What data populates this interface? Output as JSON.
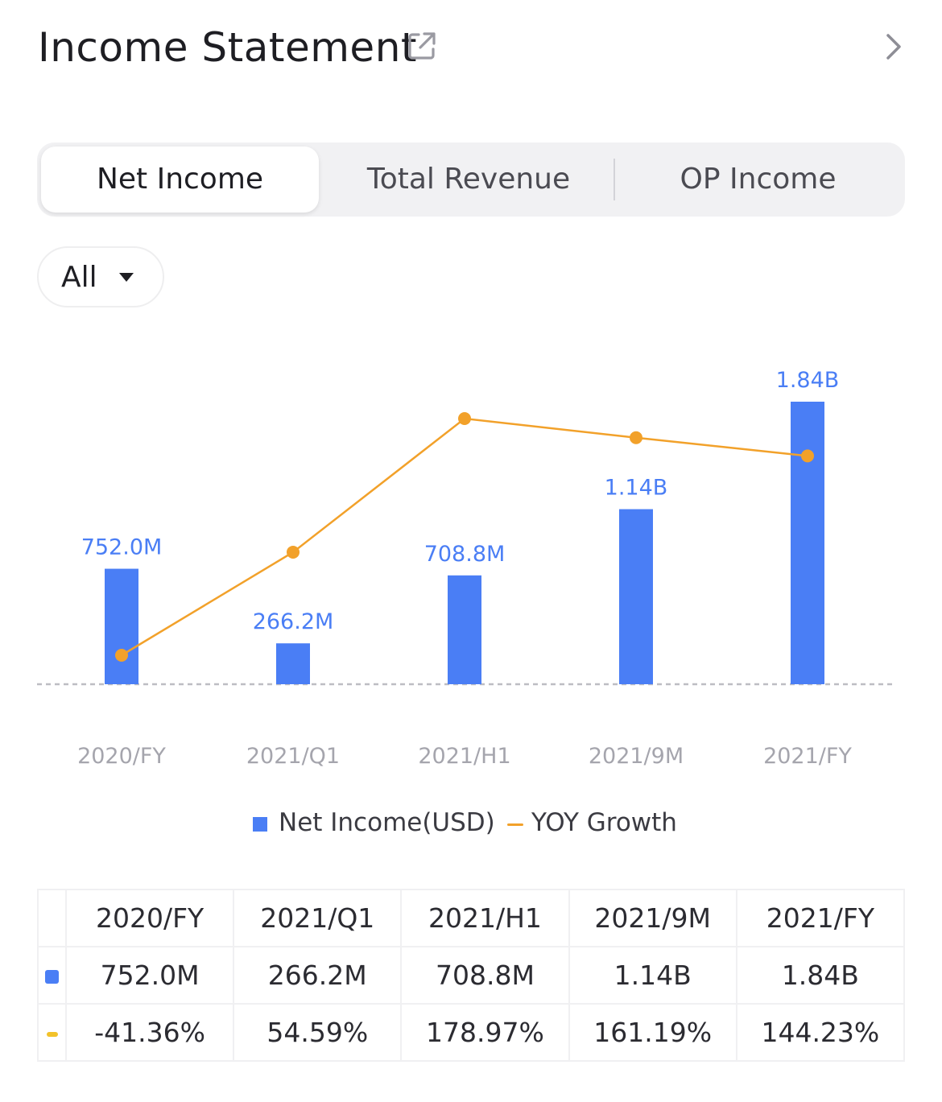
{
  "header": {
    "title": "Income Statement"
  },
  "tabs": [
    {
      "label": "Net Income",
      "active": true
    },
    {
      "label": "Total Revenue",
      "active": false
    },
    {
      "label": "OP Income",
      "active": false
    }
  ],
  "filter": {
    "selected": "All"
  },
  "colors": {
    "bar": "#4a7ef5",
    "line": "#f2a12a",
    "negative": "#e1504f",
    "positive": "#3aa35a"
  },
  "chart_data": {
    "type": "bar",
    "categories": [
      "2020/FY",
      "2021/Q1",
      "2021/H1",
      "2021/9M",
      "2021/FY"
    ],
    "series": [
      {
        "name": "Net Income(USD)",
        "type": "bar",
        "values": [
          752.0,
          266.2,
          708.8,
          1140,
          1840
        ],
        "unit": "M",
        "labels": [
          "752.0M",
          "266.2M",
          "708.8M",
          "1.14B",
          "1.84B"
        ]
      },
      {
        "name": "YOY Growth",
        "type": "line",
        "values": [
          -41.36,
          54.59,
          178.97,
          161.19,
          144.23
        ],
        "unit": "%"
      }
    ],
    "grid": false,
    "legend": "bottom"
  },
  "legend": {
    "bar": "Net Income(USD)",
    "line": "YOY Growth"
  },
  "table": {
    "headers": [
      "2020/FY",
      "2021/Q1",
      "2021/H1",
      "2021/9M",
      "2021/FY"
    ],
    "net_income": [
      "752.0M",
      "266.2M",
      "708.8M",
      "1.14B",
      "1.84B"
    ],
    "yoy": [
      "-41.36%",
      "54.59%",
      "178.97%",
      "161.19%",
      "144.23%"
    ]
  }
}
